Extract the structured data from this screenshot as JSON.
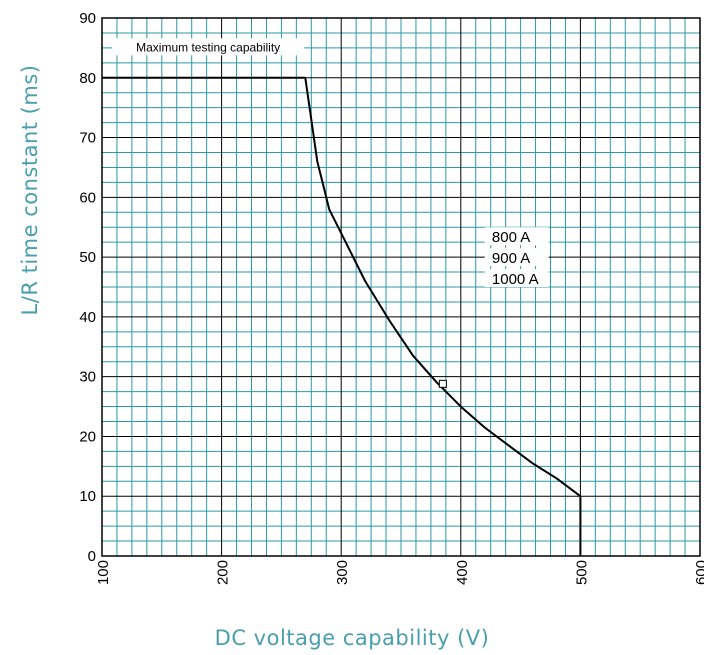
{
  "chart_data": {
    "type": "line",
    "xlabel": "DC voltage capability (V)",
    "ylabel": "L/R time constant (ms)",
    "xlim": [
      100,
      600
    ],
    "ylim": [
      0,
      90
    ],
    "x_ticks": [
      100,
      200,
      300,
      400,
      500,
      600
    ],
    "y_ticks": [
      0,
      10,
      20,
      30,
      40,
      50,
      60,
      70,
      80,
      90
    ],
    "x_minor_step": 12.5,
    "y_minor_step": 2.5,
    "grid": true,
    "colors": {
      "minor_grid": "#2a9aa6",
      "major_grid": "#000000",
      "series": "#000000",
      "axis_title": "#4a9fae"
    },
    "series": [
      {
        "x": [
          100,
          270,
          275,
          280,
          285,
          290,
          300,
          320,
          340,
          360,
          380,
          400,
          420,
          440,
          460,
          480,
          500,
          500
        ],
        "y": [
          80,
          80,
          73,
          66,
          62,
          58,
          54,
          46,
          39.5,
          33.5,
          29,
          25,
          21.5,
          18.5,
          15.5,
          13,
          10,
          0
        ]
      }
    ],
    "annotations": {
      "max_label": "Maximum testing capability",
      "currents": [
        "800 A",
        "900 A",
        "1000 A"
      ]
    }
  }
}
